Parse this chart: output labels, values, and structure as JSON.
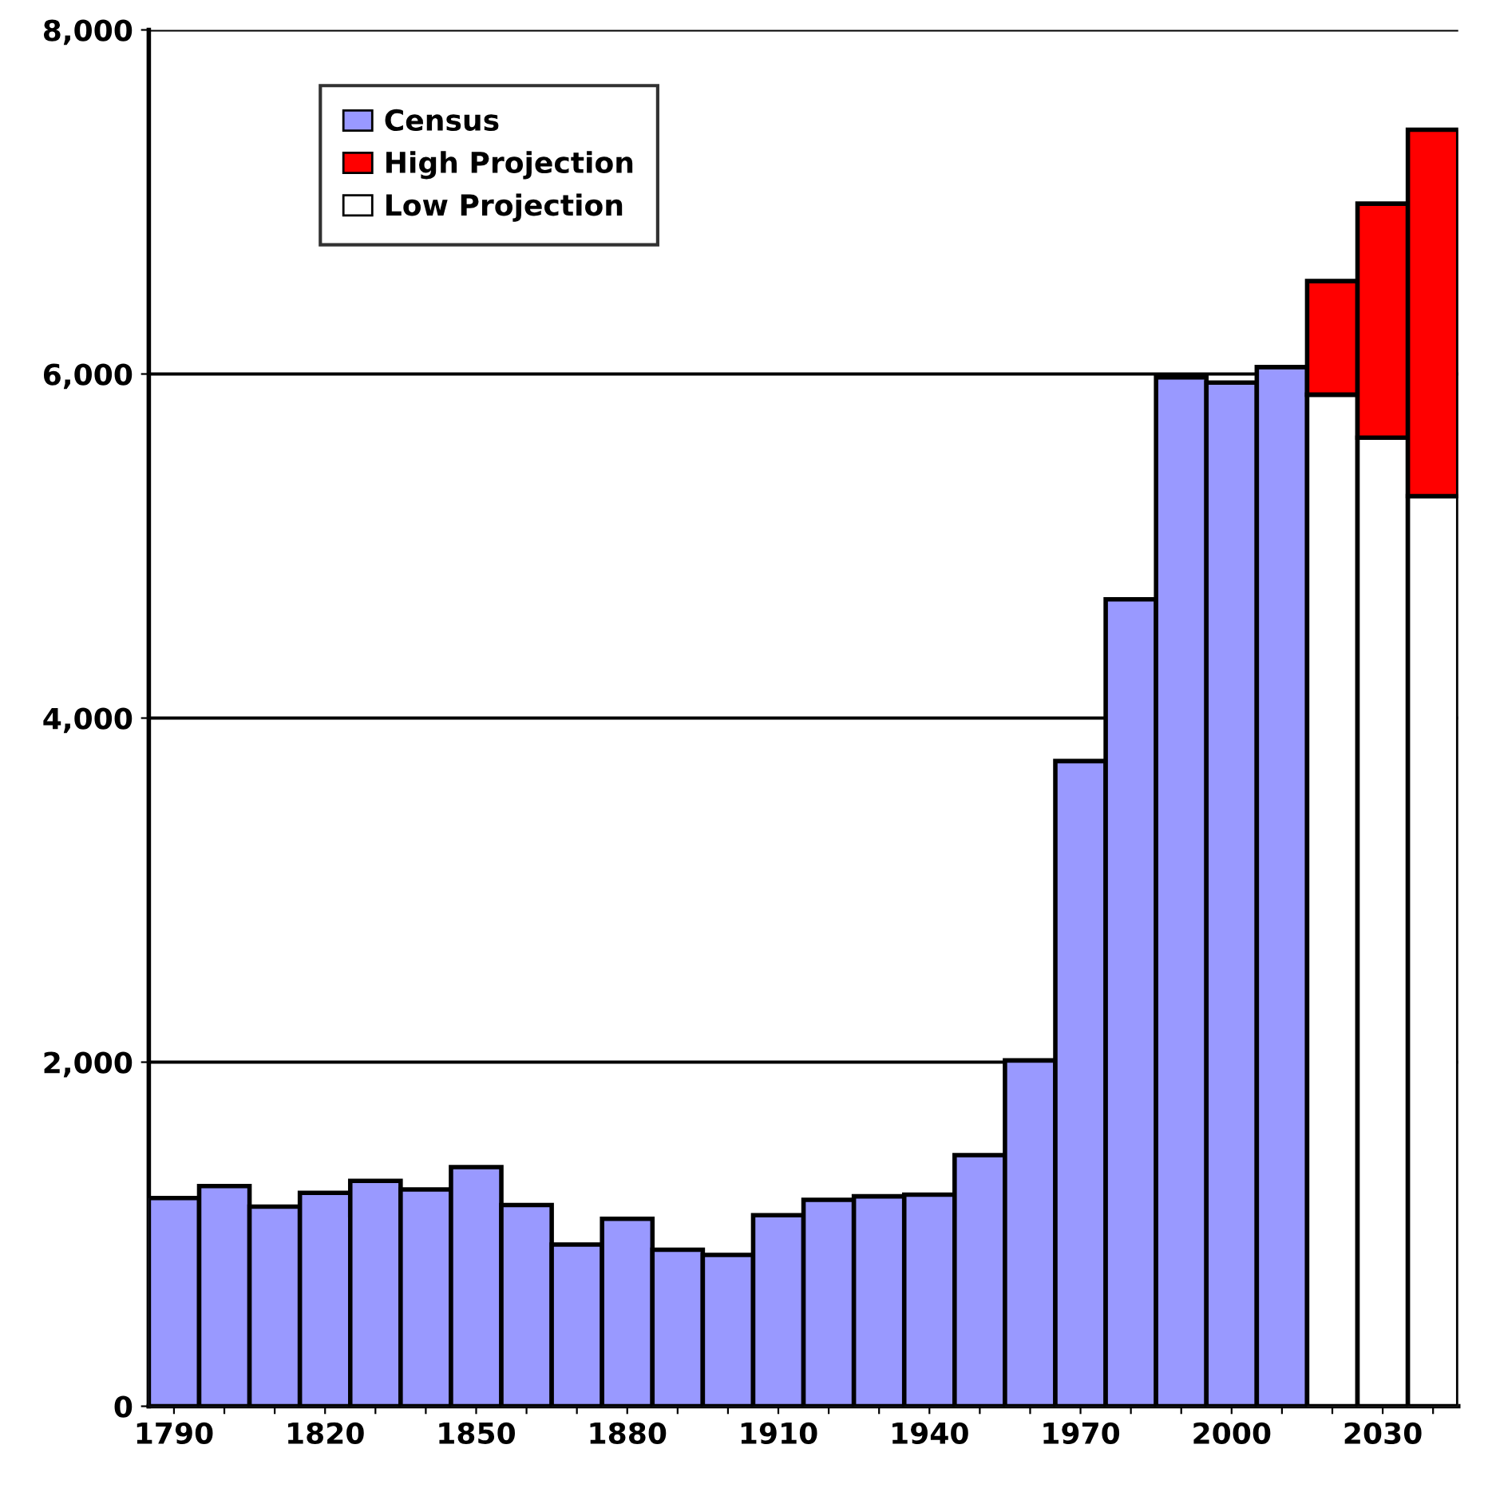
{
  "chart_data": {
    "type": "bar",
    "stacked": true,
    "categories": [
      "1790",
      null,
      null,
      "1820",
      null,
      null,
      "1850",
      null,
      null,
      "1880",
      null,
      null,
      "1910",
      null,
      null,
      "1940",
      null,
      null,
      "1970",
      null,
      null,
      "2000",
      null,
      null,
      "2030",
      null
    ],
    "series": [
      {
        "name": "Census",
        "color": "#9999ff",
        "values": [
          1210,
          1280,
          1160,
          1240,
          1310,
          1260,
          1390,
          1170,
          940,
          1090,
          910,
          880,
          1110,
          1200,
          1220,
          1230,
          1460,
          2010,
          3750,
          4690,
          5980,
          5950,
          6040,
          null,
          null,
          null
        ]
      },
      {
        "name": "Low Projection",
        "color": "#ffffff",
        "values": [
          null,
          null,
          null,
          null,
          null,
          null,
          null,
          null,
          null,
          null,
          null,
          null,
          null,
          null,
          null,
          null,
          null,
          null,
          null,
          null,
          null,
          null,
          null,
          5880,
          5630,
          5290
        ]
      },
      {
        "name": "High Projection",
        "color": "#ff0000",
        "values": [
          null,
          null,
          null,
          null,
          null,
          null,
          null,
          null,
          null,
          null,
          null,
          null,
          null,
          null,
          null,
          null,
          null,
          null,
          null,
          null,
          null,
          null,
          null,
          660,
          1360,
          2130
        ]
      }
    ],
    "ylim": [
      0,
      8000
    ],
    "yticks": [
      {
        "value": 0,
        "label": "0"
      },
      {
        "value": 2000,
        "label": "2,000"
      },
      {
        "value": 4000,
        "label": "4,000"
      },
      {
        "value": 6000,
        "label": "6,000"
      },
      {
        "value": 8000,
        "label": "8,000"
      }
    ],
    "grid": "y",
    "legend": "top left"
  }
}
